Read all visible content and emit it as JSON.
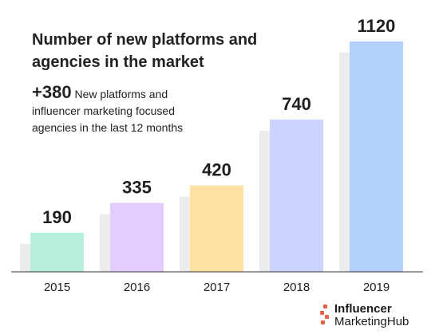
{
  "header": {
    "title": "Number of new platforms and agencies in the market",
    "callout_value": "+380",
    "callout_text": "New platforms and influencer marketing focused agencies in the last 12 months"
  },
  "brand": {
    "line1": "Influencer",
    "line2": "MarketingHub"
  },
  "chart_data": {
    "type": "bar",
    "title": "Number of new platforms and agencies in the market",
    "categories": [
      "2015",
      "2016",
      "2017",
      "2018",
      "2019"
    ],
    "values": [
      190,
      335,
      420,
      740,
      1120
    ],
    "data_labels": [
      "190",
      "335",
      "420",
      "740",
      "1120"
    ],
    "colors": [
      "#b6efde",
      "#e3ccff",
      "#ffe0a3",
      "#cdd3ff",
      "#b3cffb"
    ],
    "shadow_color": "#ececec",
    "ylim": [
      0,
      1120
    ],
    "grid": false,
    "legend": "none",
    "xlabel": "",
    "ylabel": ""
  }
}
